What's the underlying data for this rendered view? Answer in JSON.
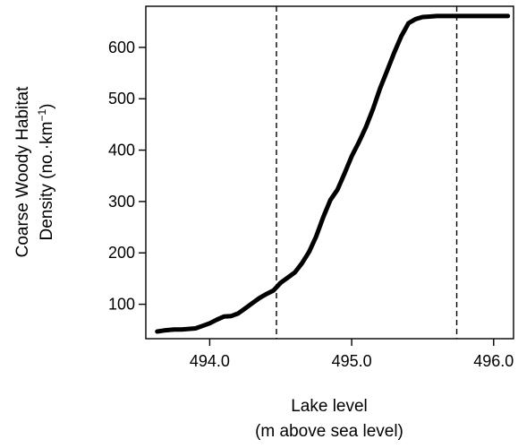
{
  "chart_data": {
    "type": "line",
    "xlabel": "Lake level",
    "xlabel_line2": "(m above sea level)",
    "ylabel": "Coarse Woody Habitat",
    "ylabel_line2_main": "Density (no.·km",
    "ylabel_line2_sup": "−1",
    "ylabel_line2_end": ")",
    "xlim": [
      493.55,
      496.14
    ],
    "ylim": [
      33,
      680
    ],
    "x_ticks": [
      494.0,
      495.0,
      496.0
    ],
    "x_tick_labels": [
      "494.0",
      "495.0",
      "496.0"
    ],
    "y_ticks": [
      100,
      200,
      300,
      400,
      500,
      600
    ],
    "y_tick_labels": [
      "100",
      "200",
      "300",
      "400",
      "500",
      "600"
    ],
    "grid": false,
    "reference_lines_x": [
      494.47,
      495.74
    ],
    "series": [
      {
        "x": [
          493.63,
          493.68,
          493.75,
          493.8,
          493.9,
          493.95,
          494.0,
          494.05,
          494.1,
          494.15,
          494.2,
          494.25,
          494.3,
          494.35,
          494.4,
          494.45,
          494.5,
          494.55,
          494.6,
          494.65,
          494.7,
          494.75,
          494.8,
          494.85,
          494.9,
          494.95,
          495.0,
          495.05,
          495.1,
          495.15,
          495.2,
          495.25,
          495.3,
          495.35,
          495.4,
          495.45,
          495.5,
          495.55,
          495.6,
          495.7,
          495.8,
          495.9,
          496.0,
          496.1
        ],
        "y": [
          47,
          49,
          51,
          51,
          53,
          58,
          63,
          70,
          76,
          77,
          82,
          92,
          102,
          112,
          120,
          127,
          142,
          152,
          162,
          180,
          202,
          232,
          270,
          303,
          323,
          355,
          388,
          415,
          445,
          480,
          520,
          555,
          590,
          622,
          647,
          655,
          659,
          660,
          661,
          661,
          661,
          661,
          661,
          661
        ]
      }
    ]
  }
}
